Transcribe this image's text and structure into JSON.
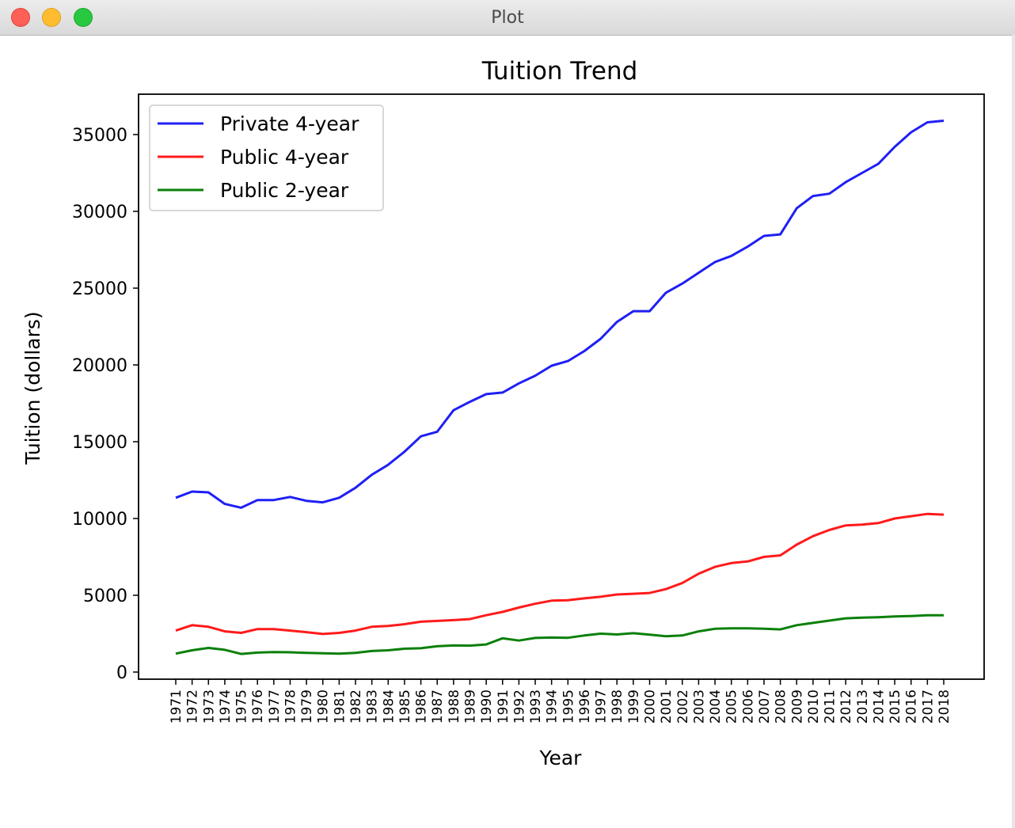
{
  "window": {
    "title": "Plot"
  },
  "chart_data": {
    "type": "line",
    "title": "Tuition Trend",
    "xlabel": "Year",
    "ylabel": "Tuition (dollars)",
    "ylim": [
      -400,
      37500
    ],
    "yticks": [
      0,
      5000,
      10000,
      15000,
      20000,
      25000,
      30000,
      35000
    ],
    "legend_position": "top-left",
    "grid": false,
    "x": [
      "1971",
      "1972",
      "1973",
      "1974",
      "1975",
      "1976",
      "1977",
      "1978",
      "1979",
      "1980",
      "1981",
      "1982",
      "1983",
      "1984",
      "1985",
      "1986",
      "1987",
      "1988",
      "1989",
      "1990",
      "1991",
      "1992",
      "1993",
      "1994",
      "1995",
      "1996",
      "1997",
      "1998",
      "1999",
      "2000",
      "2001",
      "2002",
      "2003",
      "2004",
      "2005",
      "2006",
      "2007",
      "2008",
      "2009",
      "2010",
      "2011",
      "2012",
      "2013",
      "2014",
      "2015",
      "2016",
      "2017",
      "2018"
    ],
    "series": [
      {
        "name": "Private 4-year",
        "color": "#1f1ff5",
        "values": [
          11350,
          11750,
          11700,
          10950,
          10700,
          11200,
          11200,
          11400,
          11150,
          11050,
          11350,
          12000,
          12850,
          13500,
          14350,
          15350,
          15650,
          17050,
          17600,
          18100,
          18200,
          18800,
          19300,
          19950,
          20250,
          20900,
          21700,
          22800,
          23500,
          23500,
          24700,
          25300,
          26000,
          26700,
          27100,
          27700,
          28400,
          28500,
          30200,
          31000,
          31150,
          31900,
          32500,
          33100,
          34200,
          35150,
          35800,
          35900
        ]
      },
      {
        "name": "Public 4-year",
        "color": "#ff1a1a",
        "values": [
          2700,
          3050,
          2950,
          2650,
          2550,
          2800,
          2800,
          2700,
          2600,
          2480,
          2550,
          2700,
          2950,
          3000,
          3120,
          3280,
          3330,
          3380,
          3450,
          3700,
          3920,
          4200,
          4450,
          4650,
          4680,
          4800,
          4900,
          5050,
          5100,
          5150,
          5400,
          5800,
          6400,
          6850,
          7100,
          7200,
          7500,
          7600,
          8300,
          8850,
          9250,
          9550,
          9600,
          9700,
          10000,
          10150,
          10300,
          10250
        ]
      },
      {
        "name": "Public 2-year",
        "color": "#0a800a",
        "values": [
          1200,
          1420,
          1570,
          1450,
          1180,
          1270,
          1300,
          1290,
          1250,
          1220,
          1200,
          1250,
          1370,
          1420,
          1520,
          1550,
          1680,
          1730,
          1720,
          1800,
          2200,
          2050,
          2220,
          2250,
          2230,
          2380,
          2500,
          2450,
          2530,
          2440,
          2330,
          2380,
          2650,
          2820,
          2850,
          2850,
          2820,
          2780,
          3050,
          3200,
          3350,
          3500,
          3540,
          3570,
          3620,
          3650,
          3700,
          3700
        ]
      }
    ]
  }
}
